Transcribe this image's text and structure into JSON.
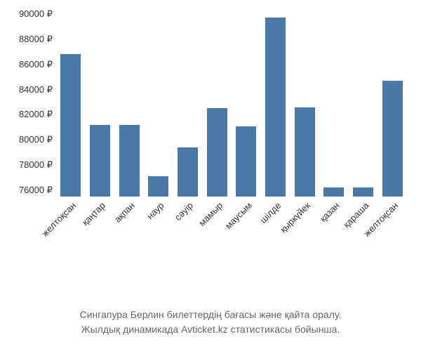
{
  "chart": {
    "type": "bar",
    "categories": [
      "желтоқсан",
      "қаңтар",
      "ақпан",
      "наур",
      "сәуір",
      "мамыр",
      "маусым",
      "шілде",
      "қыркүйек",
      "қазан",
      "қараша",
      "желтоқсан"
    ],
    "values": [
      86800,
      81200,
      81200,
      77100,
      79400,
      82500,
      81100,
      89700,
      82600,
      76200,
      76200,
      84700
    ],
    "bar_color": "#4a79a7",
    "background_color": "#ffffff",
    "y_min": 75500,
    "y_max": 90000,
    "y_tick_step": 2000,
    "y_ticks": [
      76000,
      78000,
      80000,
      82000,
      84000,
      86000,
      88000,
      90000
    ],
    "y_tick_labels": [
      "76000 ₽",
      "78000 ₽",
      "80000 ₽",
      "82000 ₽",
      "84000 ₽",
      "86000 ₽",
      "88000 ₽",
      "90000 ₽"
    ],
    "label_fontsize": 13,
    "label_color": "#333333",
    "bar_width": 0.7
  },
  "caption": {
    "line1": "Сингапура Берлин билеттердің бағасы және қайта оралу.",
    "line2": "Жылдық динамикада Avticket.kz статистикасы бойынша.",
    "fontsize": 14,
    "color": "#666666"
  }
}
